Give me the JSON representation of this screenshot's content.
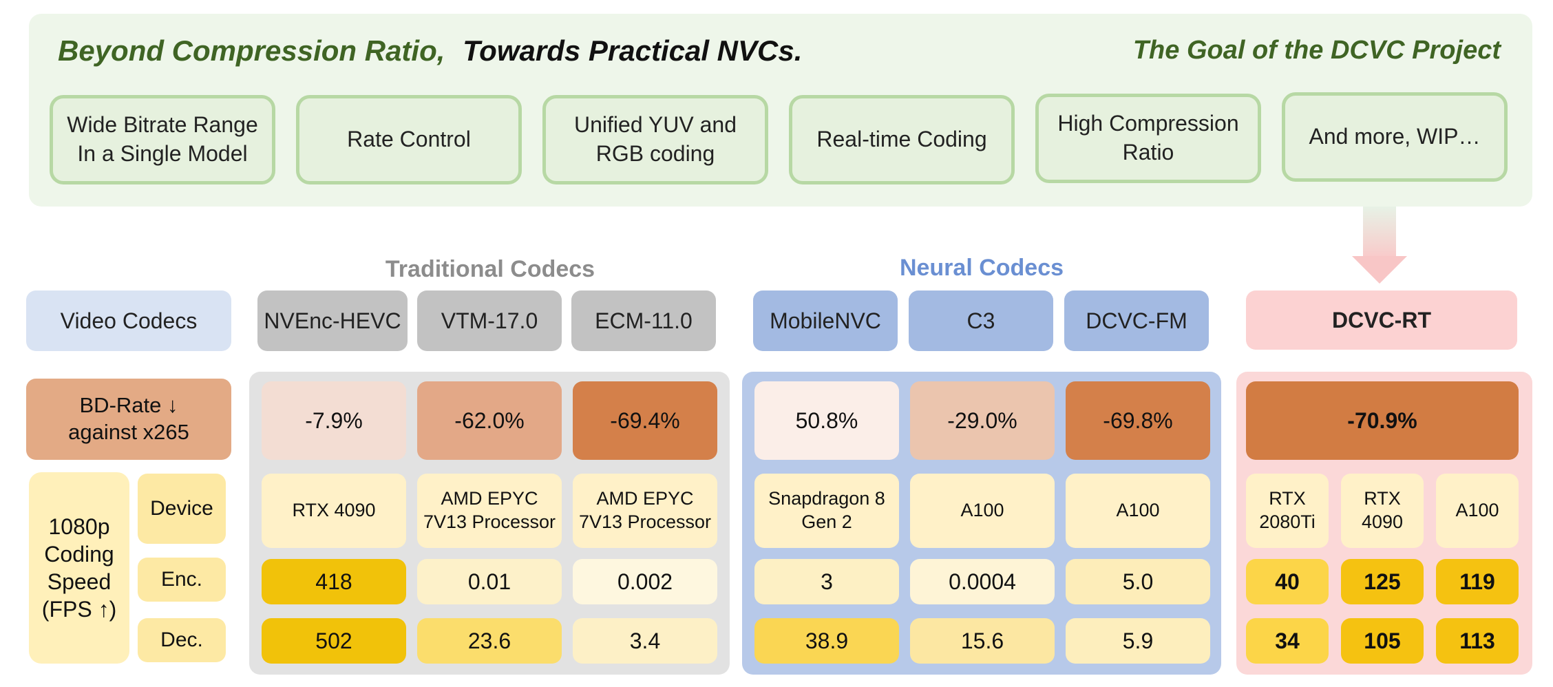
{
  "banner": {
    "title_part1": "Beyond Compression Ratio,",
    "title_part2": "Towards Practical NVCs.",
    "subtitle": "The Goal of the DCVC Project",
    "goals": [
      {
        "line1": "Wide Bitrate Range",
        "line2": "In a Single Model"
      },
      {
        "line1": "Rate Control",
        "line2": ""
      },
      {
        "line1": "Unified YUV and",
        "line2": "RGB coding"
      },
      {
        "line1": "Real-time Coding",
        "line2": ""
      },
      {
        "line1": "High Compression",
        "line2": "Ratio"
      },
      {
        "line1": "And more, WIP…",
        "line2": ""
      }
    ]
  },
  "groups": {
    "traditional": "Traditional Codecs",
    "neural": "Neural Codecs"
  },
  "row_labels": {
    "video_codecs": "Video Codecs",
    "bdrate_line1": "BD-Rate ↓",
    "bdrate_line2": "against x265",
    "speed_line1": "1080p",
    "speed_line2": "Coding",
    "speed_line3": "Speed",
    "speed_line4": "(FPS ↑)",
    "device": "Device",
    "enc": "Enc.",
    "dec": "Dec."
  },
  "codecs": {
    "nvenc": {
      "name": "NVEnc-HEVC",
      "bdrate": "-7.9%",
      "device": "RTX 4090",
      "enc": "418",
      "dec": "502"
    },
    "vtm": {
      "name": "VTM-17.0",
      "bdrate": "-62.0%",
      "device_line1": "AMD EPYC",
      "device_line2": "7V13 Processor",
      "enc": "0.01",
      "dec": "23.6"
    },
    "ecm": {
      "name": "ECM-11.0",
      "bdrate": "-69.4%",
      "device_line1": "AMD EPYC",
      "device_line2": "7V13 Processor",
      "enc": "0.002",
      "dec": "3.4"
    },
    "mobilenvc": {
      "name": "MobileNVC",
      "bdrate": "50.8%",
      "device_line1": "Snapdragon 8",
      "device_line2": "Gen 2",
      "enc": "3",
      "dec": "38.9"
    },
    "c3": {
      "name": "C3",
      "bdrate": "-29.0%",
      "device": "A100",
      "enc": "0.0004",
      "dec": "15.6"
    },
    "dcvcfm": {
      "name": "DCVC-FM",
      "bdrate": "-69.8%",
      "device": "A100",
      "enc": "5.0",
      "dec": "5.9"
    },
    "dcvcrt": {
      "name": "DCVC-RT",
      "bdrate": "-70.9%",
      "devices": [
        {
          "line1": "RTX",
          "line2": "2080Ti",
          "enc": "40",
          "dec": "34"
        },
        {
          "line1": "RTX",
          "line2": "4090",
          "enc": "125",
          "dec": "105"
        },
        {
          "line1": "A100",
          "line2": "",
          "enc": "119",
          "dec": "113"
        }
      ]
    }
  },
  "colors": {
    "banner_bg": "#eef6ea",
    "banner_title": "#3f6424",
    "traditional_heading": "#8c8c8c",
    "neural_heading": "#6a8fd2",
    "bd_nvenc": "#f3ddd3",
    "bd_vtm": "#e3a887",
    "bd_ecm": "#d4804a",
    "bd_mobilenvc": "#fbeee8",
    "bd_c3": "#ebc5ae",
    "bd_dcvcfm": "#d4804a",
    "bd_dcvcrt": "#d27c43"
  }
}
